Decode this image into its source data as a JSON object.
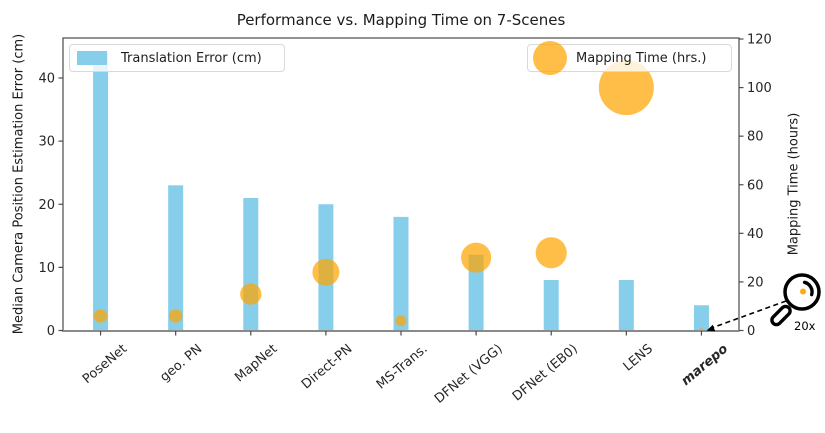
{
  "chart_data": {
    "type": "bar",
    "title": "Performance vs. Mapping Time on 7-Scenes",
    "categories": [
      "PoseNet",
      "geo. PN",
      "MapNet",
      "Direct-PN",
      "MS-Trans.",
      "DFNet (VGG)",
      "DFNet (EB0)",
      "LENS",
      "marepo"
    ],
    "series": [
      {
        "name": "Translation Error (cm)",
        "type": "bar",
        "axis": "left",
        "values": [
          44,
          23,
          21,
          20,
          18,
          12,
          8,
          8,
          4
        ],
        "color": "#87CEEB"
      },
      {
        "name": "Mapping Time (hrs.)",
        "type": "bubble",
        "axis": "right",
        "values": [
          6,
          6,
          15,
          24,
          4,
          30,
          32,
          100,
          0.3
        ],
        "color": "rgba(255,165,0,0.72)"
      }
    ],
    "left_axis": {
      "label": "Median Camera Position Estimation Error (cm)",
      "ticks": [
        0,
        10,
        20,
        30,
        40
      ],
      "lim": [
        0,
        46.5
      ]
    },
    "right_axis": {
      "label": "Mapping Time (hours)",
      "ticks": [
        0,
        20,
        40,
        60,
        80,
        100,
        120
      ],
      "lim": [
        0,
        120.5
      ]
    },
    "legend_position": {
      "bar": "upper left",
      "bubble": "upper right"
    },
    "grid": false,
    "annotations": {
      "magnifier_label": "20x",
      "highlighted_category": "marepo",
      "note": "marepo mapping-time dot magnified 20x"
    },
    "style": {
      "bar_color": "#87CEEB",
      "bubble_color": "rgba(255,165,0,0.72)",
      "spine_color": "#4a4a4a",
      "baseline_color": "#8a8a8a",
      "text_color": "#262626"
    }
  }
}
